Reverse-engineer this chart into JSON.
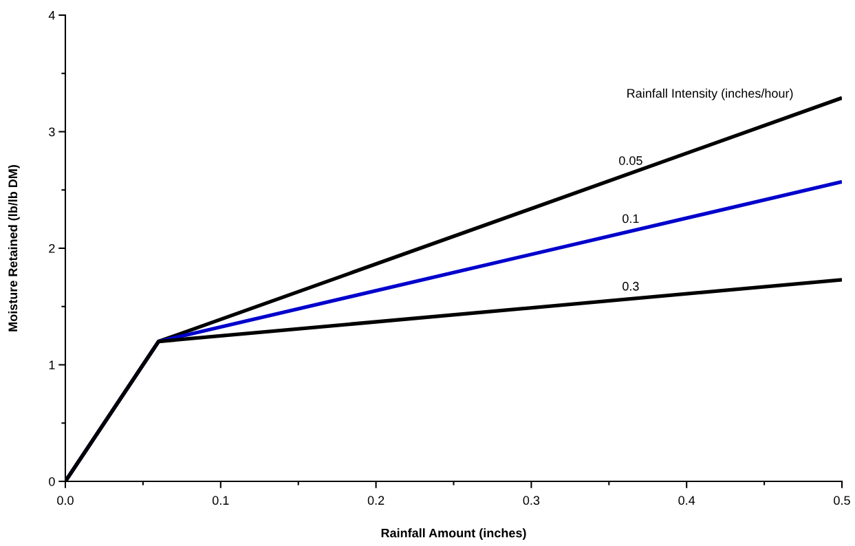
{
  "chart_data": {
    "type": "line",
    "xlabel": "Rainfall Amount (inches)",
    "ylabel": "Moisture Retained (lb/lb DM)",
    "legend_title": "Rainfall Intensity (inches/hour)",
    "xlim": [
      0,
      0.5
    ],
    "xticks": [
      {
        "value": 0,
        "label": "0.0"
      },
      0.1,
      0.2,
      0.3,
      0.4,
      0.5
    ],
    "ylim": [
      0,
      4
    ],
    "yticks": [
      0,
      1,
      2,
      3,
      4
    ],
    "grid": false,
    "legend": false,
    "marker": "none",
    "line_style": "solid",
    "series": [
      {
        "name": "0.05",
        "color": "#000000",
        "x": [
          0,
          0.06,
          0.5
        ],
        "values": [
          0,
          1.2,
          3.29
        ]
      },
      {
        "name": "0.1",
        "color": "#0000cc",
        "x": [
          0,
          0.06,
          0.5
        ],
        "values": [
          0,
          1.2,
          2.57
        ]
      },
      {
        "name": "0.3",
        "color": "#000000",
        "x": [
          0,
          0.06,
          0.5
        ],
        "values": [
          0,
          1.2,
          1.73
        ]
      }
    ]
  }
}
